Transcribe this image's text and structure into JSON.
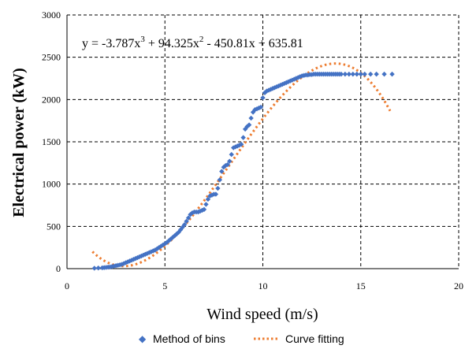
{
  "chart_data": {
    "type": "scatter",
    "xlabel": "Wind speed (m/s)",
    "ylabel": "Electrical  power (kW)",
    "xlim": [
      0,
      20
    ],
    "ylim": [
      0,
      3000
    ],
    "xticks": [
      "0",
      "5",
      "10",
      "15",
      "20"
    ],
    "yticks": [
      "0",
      "500",
      "1000",
      "1500",
      "2000",
      "2500",
      "3000"
    ],
    "grid": "dashed",
    "legend_position": "bottom",
    "annotation": {
      "prefix": "y = -3.787x",
      "exp1": "3",
      "mid1": " + 94.325x",
      "exp2": "2",
      "tail": " - 450.81x + 635.81"
    },
    "series": [
      {
        "name": "Method of bins",
        "kind": "points",
        "color": "#4472c4",
        "x": [
          1.4,
          1.6,
          1.8,
          1.9,
          2.0,
          2.1,
          2.2,
          2.3,
          2.4,
          2.5,
          2.6,
          2.7,
          2.8,
          2.9,
          3.0,
          3.1,
          3.2,
          3.3,
          3.4,
          3.5,
          3.6,
          3.7,
          3.8,
          3.9,
          4.0,
          4.1,
          4.2,
          4.3,
          4.4,
          4.5,
          4.6,
          4.7,
          4.8,
          4.9,
          5.0,
          5.1,
          5.2,
          5.3,
          5.4,
          5.5,
          5.6,
          5.7,
          5.8,
          5.9,
          6.0,
          6.1,
          6.2,
          6.3,
          6.4,
          6.5,
          6.6,
          6.7,
          6.8,
          6.9,
          7.0,
          7.1,
          7.2,
          7.3,
          7.4,
          7.5,
          7.6,
          7.7,
          7.8,
          7.9,
          8.0,
          8.1,
          8.2,
          8.3,
          8.4,
          8.5,
          8.6,
          8.7,
          8.8,
          8.9,
          9.0,
          9.1,
          9.2,
          9.3,
          9.4,
          9.5,
          9.6,
          9.7,
          9.8,
          9.9,
          10.0,
          10.1,
          10.2,
          10.3,
          10.4,
          10.5,
          10.6,
          10.7,
          10.8,
          10.9,
          11.0,
          11.1,
          11.2,
          11.3,
          11.4,
          11.5,
          11.6,
          11.7,
          11.8,
          11.9,
          12.0,
          12.1,
          12.2,
          12.3,
          12.4,
          12.5,
          12.6,
          12.7,
          12.8,
          12.9,
          13.0,
          13.1,
          13.2,
          13.3,
          13.4,
          13.5,
          13.6,
          13.7,
          13.8,
          13.9,
          14.0,
          14.2,
          14.4,
          14.6,
          14.8,
          15.0,
          15.2,
          15.5,
          15.8,
          16.2,
          16.6
        ],
        "y": [
          5,
          8,
          10,
          12,
          15,
          18,
          20,
          25,
          30,
          35,
          40,
          45,
          50,
          60,
          70,
          80,
          90,
          100,
          110,
          120,
          130,
          140,
          150,
          160,
          170,
          180,
          190,
          200,
          210,
          220,
          235,
          250,
          265,
          280,
          295,
          310,
          330,
          350,
          370,
          390,
          410,
          430,
          460,
          490,
          520,
          560,
          600,
          640,
          660,
          670,
          670,
          670,
          680,
          690,
          700,
          760,
          820,
          860,
          870,
          880,
          880,
          950,
          1050,
          1150,
          1200,
          1220,
          1230,
          1270,
          1350,
          1430,
          1440,
          1450,
          1460,
          1470,
          1550,
          1650,
          1680,
          1700,
          1780,
          1850,
          1880,
          1890,
          1900,
          1910,
          2020,
          2080,
          2100,
          2110,
          2120,
          2130,
          2140,
          2150,
          2160,
          2170,
          2180,
          2190,
          2200,
          2210,
          2220,
          2230,
          2240,
          2250,
          2260,
          2270,
          2280,
          2285,
          2290,
          2290,
          2295,
          2295,
          2300,
          2300,
          2300,
          2300,
          2300,
          2300,
          2300,
          2300,
          2300,
          2300,
          2300,
          2300,
          2300,
          2300,
          2300,
          2300,
          2300,
          2300,
          2300,
          2300,
          2300,
          2300,
          2300,
          2300,
          2300
        ]
      },
      {
        "name": "Curve fitting",
        "kind": "dotted-line",
        "color": "#ed7d31",
        "fit": {
          "a3": -3.787,
          "a2": 94.325,
          "a1": -450.81,
          "a0": 635.81,
          "xmin": 1.3,
          "xmax": 16.5
        }
      }
    ]
  },
  "colors": {
    "grid": "#000000",
    "points": "#4472c4",
    "curve": "#ed7d31"
  }
}
